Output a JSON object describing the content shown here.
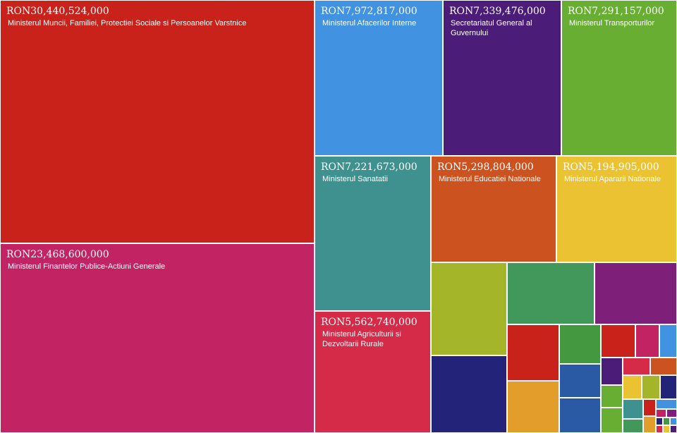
{
  "chart_data": {
    "type": "treemap",
    "items": [
      {
        "value_label": "RON30,440,524,000",
        "value": 30440524000,
        "label": "Ministerul Muncii, Familiei, Protectiei Sociale si Persoanelor Varstnice",
        "color": "#c8221b"
      },
      {
        "value_label": "RON23,468,600,000",
        "value": 23468600000,
        "label": "Ministerul Finantelor Publice-Actiuni Generale",
        "color": "#c12363"
      },
      {
        "value_label": "RON7,972,817,000",
        "value": 7972817000,
        "label": "Ministerul Afacerilor Interne",
        "color": "#4192e0"
      },
      {
        "value_label": "RON7,339,476,000",
        "value": 7339476000,
        "label": "Secretariatul General al Guvernului",
        "color": "#4b1c78"
      },
      {
        "value_label": "RON7,291,157,000",
        "value": 7291157000,
        "label": "Ministerul Transporturilor",
        "color": "#67ae33"
      },
      {
        "value_label": "RON7,221,673,000",
        "value": 7221673000,
        "label": "Ministerul Sanatatii",
        "color": "#3f918f"
      },
      {
        "value_label": "RON5,562,740,000",
        "value": 5562740000,
        "label": "Ministerul Agriculturii si Dezvoltarii Rurale",
        "color": "#d52a48"
      },
      {
        "value_label": "RON5,298,804,000",
        "value": 5298804000,
        "label": "Ministerul Educatiei Nationale",
        "color": "#cc5220"
      },
      {
        "value_label": "RON5,194,905,000",
        "value": 5194905000,
        "label": "Ministerul Apararii Nationale",
        "color": "#eac232"
      }
    ],
    "small_tile_colors": [
      "#a5b52a",
      "#42975a",
      "#7e2079",
      "#23237a",
      "#c8221b",
      "#439840",
      "#c8221b",
      "#c12363",
      "#4192e0",
      "#e39d2a",
      "#2b5aa5",
      "#4b1c78",
      "#d52a48",
      "#cc5220",
      "#2b5aa5",
      "#67ae33",
      "#eac232",
      "#a5b52a",
      "#23237a",
      "#67ae33",
      "#3f918f",
      "#42975a",
      "#c8221b",
      "#4192e0",
      "#c12363",
      "#e39d2a",
      "#7e2079"
    ]
  }
}
